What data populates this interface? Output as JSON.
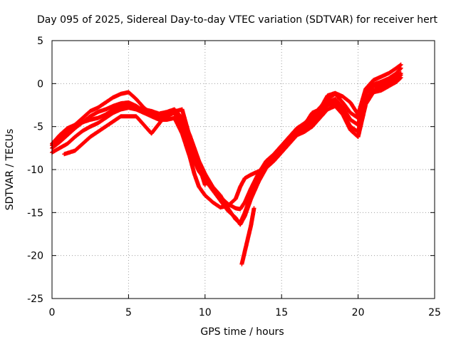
{
  "chart_data": {
    "type": "scatter",
    "title": "Day 095 of 2025, Sidereal Day-to-day VTEC variation (SDTVAR) for receiver hert",
    "xlabel": "GPS time / hours",
    "ylabel": "SDTVAR / TECUs",
    "xlim": [
      0,
      25
    ],
    "ylim": [
      -25,
      5
    ],
    "xticks": [
      "0",
      "5",
      "10",
      "15",
      "20",
      "25"
    ],
    "yticks": [
      "5",
      "0",
      "-5",
      "-10",
      "-15",
      "-20",
      "-25"
    ],
    "grid": true,
    "marker": "+",
    "color": "#ff0000",
    "series": [
      {
        "x": [
          0,
          0.5,
          1,
          1.5,
          2,
          2.5,
          3,
          3.5,
          4,
          4.5,
          5,
          5.5,
          6,
          6.5,
          7,
          7.5,
          8,
          8.5,
          9,
          9.3,
          9.6,
          10,
          10.5,
          11,
          11.5,
          12,
          12.3,
          12.6,
          13,
          13.5,
          14,
          14.5,
          15,
          15.5,
          16,
          16.5,
          17,
          17.5,
          18,
          18.5,
          19,
          19.5,
          20,
          20.5,
          21,
          21.5,
          22,
          22.5,
          22.8
        ],
        "y": [
          -7.5,
          -6.8,
          -6,
          -5.2,
          -4.5,
          -4.2,
          -4,
          -3.6,
          -3,
          -2.6,
          -2.6,
          -2.8,
          -3,
          -3.2,
          -3.5,
          -3.3,
          -3,
          -4,
          -6,
          -7.5,
          -9,
          -10.5,
          -12,
          -13,
          -14.5,
          -15.8,
          -16.2,
          -15,
          -13,
          -11,
          -9.5,
          -8.5,
          -7.5,
          -6.5,
          -5.5,
          -5,
          -4.2,
          -3.2,
          -2.2,
          -1.8,
          -2.8,
          -4.2,
          -4.8,
          -1.2,
          -0.3,
          -0.2,
          0.2,
          0.8,
          1.2
        ]
      },
      {
        "x": [
          0,
          0.5,
          1,
          1.5,
          2,
          2.5,
          3,
          3.5,
          4,
          4.5,
          5,
          5.5,
          6,
          6.5,
          7,
          7.5,
          8,
          8.5,
          9,
          9.3,
          9.6,
          10,
          10.5,
          11,
          11.5,
          12,
          12.3,
          12.6,
          13,
          13.5,
          14,
          14.5,
          15,
          15.5,
          16,
          16.5,
          17,
          17.5,
          18,
          18.5,
          19,
          19.5,
          20,
          20.5,
          21,
          21.5,
          22,
          22.5,
          22.8
        ],
        "y": [
          -7,
          -6,
          -5.2,
          -4.8,
          -4.5,
          -3.8,
          -3.3,
          -3,
          -2.6,
          -2.3,
          -2.2,
          -2.6,
          -3.2,
          -3.6,
          -4,
          -3.8,
          -3.4,
          -5,
          -7.5,
          -9,
          -10.2,
          -11.2,
          -12.4,
          -13.6,
          -14.8,
          -15.6,
          -16.4,
          -15.4,
          -13.4,
          -11.4,
          -9.8,
          -8.8,
          -7.8,
          -6.8,
          -5.8,
          -5.2,
          -4.5,
          -3.5,
          -2.5,
          -2.2,
          -3.4,
          -5,
          -5.6,
          -1.8,
          -0.8,
          -0.6,
          0,
          0.5,
          1
        ]
      },
      {
        "x": [
          0,
          0.5,
          1,
          1.5,
          2,
          2.5,
          3,
          3.5,
          4,
          4.5,
          5,
          5.5,
          6,
          6.5,
          7,
          7.5,
          8,
          8.5,
          9,
          9.3,
          9.6,
          10,
          10.5,
          11,
          11.5,
          12,
          12.3,
          12.6,
          13,
          13.5,
          14,
          14.5,
          15,
          15.5,
          16,
          16.5,
          17,
          17.5,
          18,
          18.5,
          19,
          19.5,
          20,
          20.5,
          21,
          21.5,
          22,
          22.5,
          22.8
        ],
        "y": [
          -8,
          -7.5,
          -7,
          -6.2,
          -5.5,
          -5,
          -4.6,
          -4,
          -3.4,
          -3,
          -2.8,
          -3,
          -3.4,
          -3.8,
          -4.2,
          -4.2,
          -4,
          -5.8,
          -8.5,
          -10.5,
          -12,
          -13,
          -13.8,
          -14.4,
          -14.2,
          -13.4,
          -12,
          -11,
          -10.6,
          -10.2,
          -9.8,
          -9,
          -8,
          -7,
          -6,
          -5.6,
          -5,
          -4,
          -3,
          -2.6,
          -3.6,
          -5.4,
          -6.2,
          -2.4,
          -1,
          -0.8,
          -0.3,
          0.2,
          0.7
        ]
      },
      {
        "x": [
          0,
          0.5,
          1,
          1.5,
          2,
          2.5,
          3,
          3.5,
          4,
          4.5,
          5,
          5.5,
          6,
          6.5,
          7,
          7.5,
          8,
          8.5,
          9,
          9.3,
          9.6,
          10,
          10.5,
          11,
          11.5,
          12,
          12.3,
          12.6,
          13,
          13.5,
          14,
          14.5,
          15,
          15.5,
          16,
          16.5,
          17,
          17.5,
          18,
          18.5,
          19,
          19.5,
          20,
          20.5,
          21,
          21.5,
          22,
          22.5,
          22.8
        ],
        "y": [
          -7.2,
          -6.4,
          -5.5,
          -4.8,
          -4,
          -3.2,
          -2.8,
          -2.2,
          -1.6,
          -1.2,
          -1,
          -1.8,
          -2.8,
          -3.5,
          -4,
          -3.6,
          -3,
          -4.5,
          -6.5,
          -8,
          -9.5,
          -10.8,
          -12.2,
          -13.2,
          -14,
          -14.5,
          -14.6,
          -13.8,
          -12.2,
          -10.4,
          -9,
          -8.2,
          -7.2,
          -6.2,
          -5.2,
          -4.6,
          -3.8,
          -2.8,
          -1.8,
          -1.2,
          -2.2,
          -3.4,
          -4,
          -0.8,
          -0.1,
          0.2,
          0.6,
          1.2,
          1.8
        ]
      },
      {
        "x": [
          0.8,
          1.5,
          2.5,
          3.5,
          4.5,
          5.5,
          6.5,
          7.5,
          8.5,
          9.2,
          9.6,
          10
        ],
        "y": [
          -8.2,
          -7.8,
          -6.2,
          -5,
          -3.8,
          -3.8,
          -5.8,
          -3.5,
          -3,
          -7.5,
          -9.5,
          -11.8
        ]
      },
      {
        "x": [
          12.4,
          12.6,
          12.8,
          13,
          13.2
        ],
        "y": [
          -21,
          -19.5,
          -18,
          -16.5,
          -14.5
        ]
      },
      {
        "x": [
          16,
          16.5,
          17,
          17.5,
          18,
          18.5,
          19,
          19.5,
          20,
          20.5,
          21,
          21.5,
          22,
          22.5,
          22.8
        ],
        "y": [
          -5.2,
          -4.8,
          -3.4,
          -3,
          -1.4,
          -1.1,
          -1.5,
          -2.2,
          -3.6,
          -0.6,
          0.4,
          0.8,
          1.2,
          1.8,
          2.2
        ]
      }
    ]
  }
}
